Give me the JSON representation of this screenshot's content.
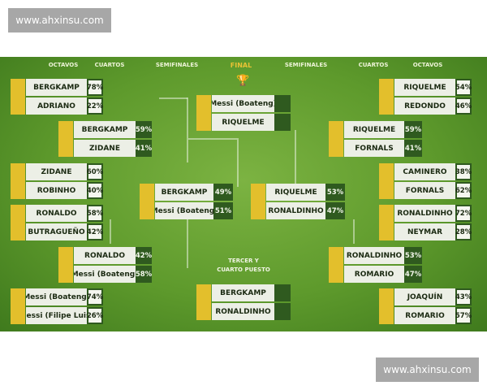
{
  "watermark": {
    "top": "www.ahxinsu.com",
    "bottom": "www.ahxinsu.com"
  },
  "headers": {
    "left_octavos": "OCTAVOS",
    "left_cuartos": "CUARTOS",
    "left_semis": "SEMIFINALES",
    "final": "FINAL",
    "right_semis": "SEMIFINALES",
    "right_cuartos": "CUARTOS",
    "right_octavos": "OCTAVOS"
  },
  "third_place_label": [
    "TERCER Y",
    "CUARTO PUESTO"
  ],
  "colors": {
    "field": "#5e9a2c",
    "accent": "#e3bf2c",
    "pct_bg": "#2f5a1f"
  },
  "matches": {
    "left_octavos": [
      [
        {
          "name": "BERGKAMP",
          "pct": "78%"
        },
        {
          "name": "ADRIANO",
          "pct": "22%"
        }
      ],
      [
        {
          "name": "ZIDANE",
          "pct": "60%"
        },
        {
          "name": "ROBINHO",
          "pct": "40%"
        }
      ],
      [
        {
          "name": "RONALDO",
          "pct": "58%"
        },
        {
          "name": "BUTRAGUEÑO",
          "pct": "42%"
        }
      ],
      [
        {
          "name": "Messi (Boateng)",
          "pct": "74%"
        },
        {
          "name": "Messi (Filipe Luis)",
          "pct": "26%"
        }
      ]
    ],
    "left_cuartos": [
      [
        {
          "name": "BERGKAMP",
          "pct": "59%"
        },
        {
          "name": "ZIDANE",
          "pct": "41%"
        }
      ],
      [
        {
          "name": "RONALDO",
          "pct": "42%"
        },
        {
          "name": "Messi (Boateng)",
          "pct": "58%"
        }
      ]
    ],
    "left_semis": [
      [
        {
          "name": "BERGKAMP",
          "pct": "49%"
        },
        {
          "name": "Messi (Boateng)",
          "pct": "51%"
        }
      ]
    ],
    "final": [
      [
        {
          "name": "Messi (Boateng)",
          "pct": ""
        },
        {
          "name": "RIQUELME",
          "pct": ""
        }
      ]
    ],
    "third_place": [
      [
        {
          "name": "BERGKAMP",
          "pct": ""
        },
        {
          "name": "RONALDINHO",
          "pct": ""
        }
      ]
    ],
    "right_semis": [
      [
        {
          "name": "RIQUELME",
          "pct": "53%"
        },
        {
          "name": "RONALDINHO",
          "pct": "47%"
        }
      ]
    ],
    "right_cuartos": [
      [
        {
          "name": "RIQUELME",
          "pct": "59%"
        },
        {
          "name": "FORNALS",
          "pct": "41%"
        }
      ],
      [
        {
          "name": "RONALDINHO",
          "pct": "53%"
        },
        {
          "name": "ROMARIO",
          "pct": "47%"
        }
      ]
    ],
    "right_octavos": [
      [
        {
          "name": "RIQUELME",
          "pct": "54%"
        },
        {
          "name": "REDONDO",
          "pct": "46%"
        }
      ],
      [
        {
          "name": "CAMINERO",
          "pct": "38%"
        },
        {
          "name": "FORNALS",
          "pct": "62%"
        }
      ],
      [
        {
          "name": "RONALDINHO",
          "pct": "72%"
        },
        {
          "name": "NEYMAR",
          "pct": "28%"
        }
      ],
      [
        {
          "name": "JOAQUÍN",
          "pct": "43%"
        },
        {
          "name": "ROMARIO",
          "pct": "57%"
        }
      ]
    ]
  }
}
